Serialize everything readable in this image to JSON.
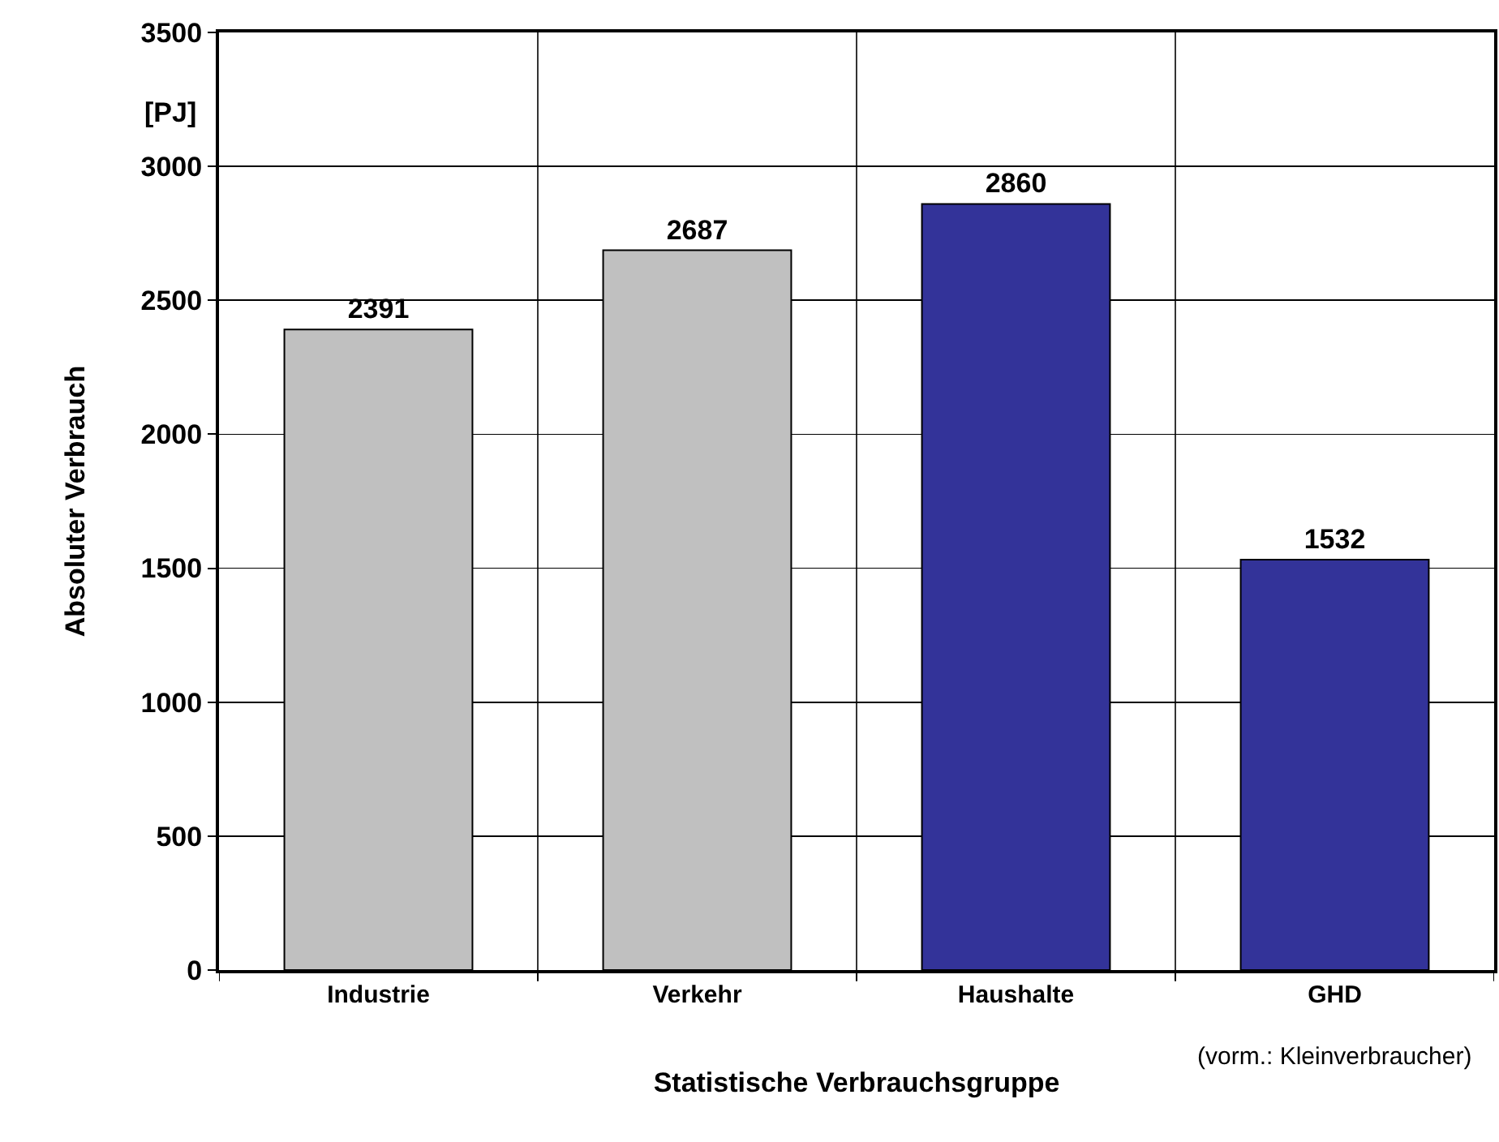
{
  "chart_data": {
    "type": "bar",
    "categories": [
      "Industrie",
      "Verkehr",
      "Haushalte",
      "GHD"
    ],
    "values": [
      2391,
      2687,
      2860,
      1532
    ],
    "colors": [
      "#c0c0c0",
      "#c0c0c0",
      "#333399",
      "#333399"
    ],
    "data_labels": true,
    "xlabel": "Statistische Verbrauchsgruppe",
    "ylabel": "Absoluter Verbrauch",
    "ylim": [
      0,
      3500
    ],
    "yticks": [
      0,
      500,
      1000,
      1500,
      2000,
      2500,
      3000,
      3500
    ],
    "grid": true,
    "annotations": [
      "[PJ]",
      "(vorm.: Kleinverbraucher)"
    ]
  }
}
